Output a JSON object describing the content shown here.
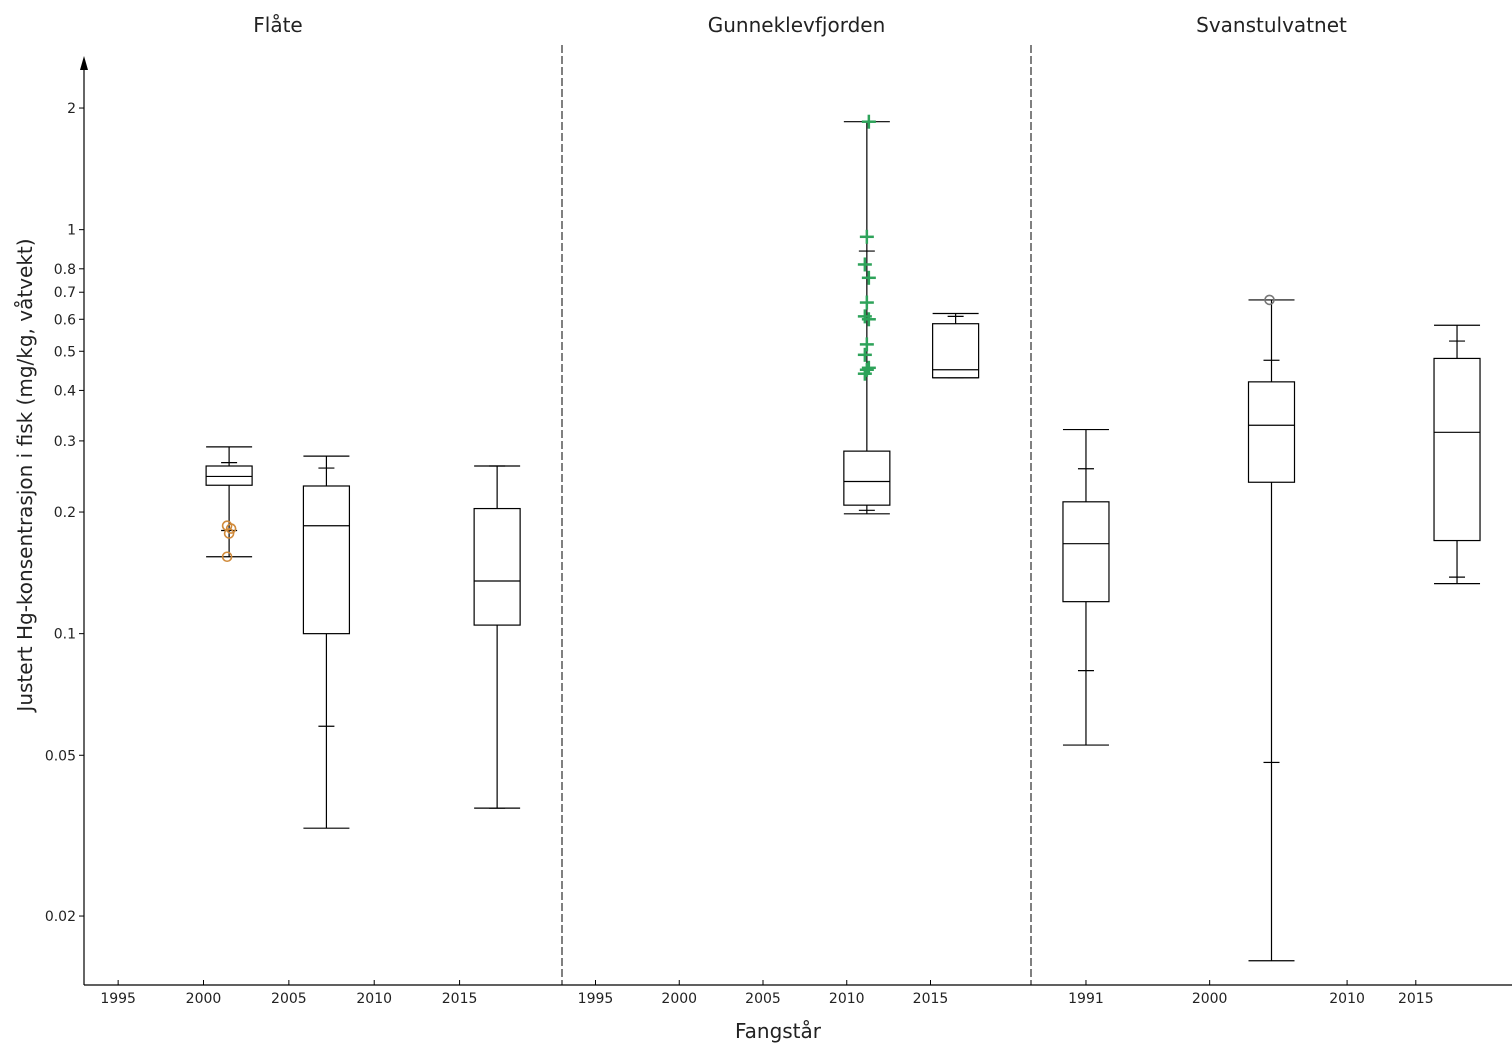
{
  "chart_data": {
    "type": "box",
    "ylabel": "Justert Hg-konsentrasjon i fisk (mg/kg, våtvekt)",
    "xlabel": "Fangstår",
    "yscale": "log",
    "ylim": [
      0.0135,
      2.6
    ],
    "yticks": [
      0.02,
      0.05,
      0.1,
      0.2,
      0.3,
      0.4,
      0.5,
      0.6,
      0.7,
      0.8,
      1,
      2
    ],
    "ytick_labels": [
      "0.02",
      "0.05",
      "0.1",
      "0.2",
      "0.3",
      "0.4",
      "0.5",
      "0.6",
      "0.7",
      "0.8",
      "1",
      "2"
    ],
    "panels": [
      {
        "title": "Flåte",
        "xlim": [
          1993,
          2021
        ],
        "xticks": [
          1995,
          2000,
          2005,
          2010,
          2015
        ],
        "xtick_labels": [
          "1995",
          "2000",
          "2005",
          "2010",
          "2015"
        ],
        "boxes": [
          {
            "x": 2001.5,
            "whisker_low": 0.155,
            "p10": 0.18,
            "q1": 0.233,
            "median": 0.245,
            "q3": 0.26,
            "p90": 0.265,
            "whisker_high": 0.29,
            "outliers": [
              0.155,
              0.177,
              0.182,
              0.185
            ],
            "outlier_marker": "circle",
            "outlier_color": "#d08a3a"
          },
          {
            "x": 2007.2,
            "whisker_low": 0.033,
            "p10": 0.059,
            "q1": 0.1,
            "median": 0.185,
            "q3": 0.232,
            "p90": 0.257,
            "whisker_high": 0.275,
            "outliers": []
          },
          {
            "x": 2017.2,
            "whisker_low": 0.037,
            "p10": 0.037,
            "q1": 0.105,
            "median": 0.135,
            "q3": 0.204,
            "p90": 0.26,
            "whisker_high": 0.26,
            "outliers": []
          }
        ]
      },
      {
        "title": "Gunneklevfjorden",
        "xlim": [
          1993,
          2021
        ],
        "xticks": [
          1995,
          2000,
          2005,
          2010,
          2015
        ],
        "xtick_labels": [
          "1995",
          "2000",
          "2005",
          "2010",
          "2015"
        ],
        "boxes": [
          {
            "x": 2011.2,
            "whisker_low": 0.198,
            "p10": 0.202,
            "q1": 0.208,
            "median": 0.238,
            "q3": 0.283,
            "p90": 0.885,
            "whisker_high": 1.85,
            "outliers": [
              0.44,
              0.45,
              0.455,
              0.49,
              0.52,
              0.6,
              0.61,
              0.66,
              0.76,
              0.82,
              0.96,
              1.85
            ],
            "outlier_marker": "plus",
            "outlier_color": "#2ea35a"
          },
          {
            "x": 2016.5,
            "whisker_low": 0.43,
            "p10": 0.43,
            "q1": 0.43,
            "median": 0.45,
            "q3": 0.585,
            "p90": 0.61,
            "whisker_high": 0.62,
            "outliers": []
          }
        ]
      },
      {
        "title": "Svanstulvatnet",
        "xlim": [
          1987,
          2022
        ],
        "xticks": [
          1991,
          2000,
          2010,
          2015
        ],
        "xtick_labels": [
          "1991",
          "2000",
          "2010",
          "2015"
        ],
        "boxes": [
          {
            "x": 1991,
            "whisker_low": 0.053,
            "p10": 0.081,
            "q1": 0.12,
            "median": 0.167,
            "q3": 0.212,
            "p90": 0.256,
            "whisker_high": 0.32,
            "outliers": []
          },
          {
            "x": 2004.5,
            "whisker_low": 0.0155,
            "p10": 0.048,
            "q1": 0.237,
            "median": 0.328,
            "q3": 0.42,
            "p90": 0.475,
            "whisker_high": 0.67,
            "outliers": [
              0.67
            ],
            "outlier_marker": "circle",
            "outlier_color": "#777777"
          },
          {
            "x": 2018,
            "whisker_low": 0.133,
            "p10": 0.138,
            "q1": 0.17,
            "median": 0.315,
            "q3": 0.48,
            "p90": 0.53,
            "whisker_high": 0.58,
            "outliers": []
          }
        ]
      }
    ]
  }
}
